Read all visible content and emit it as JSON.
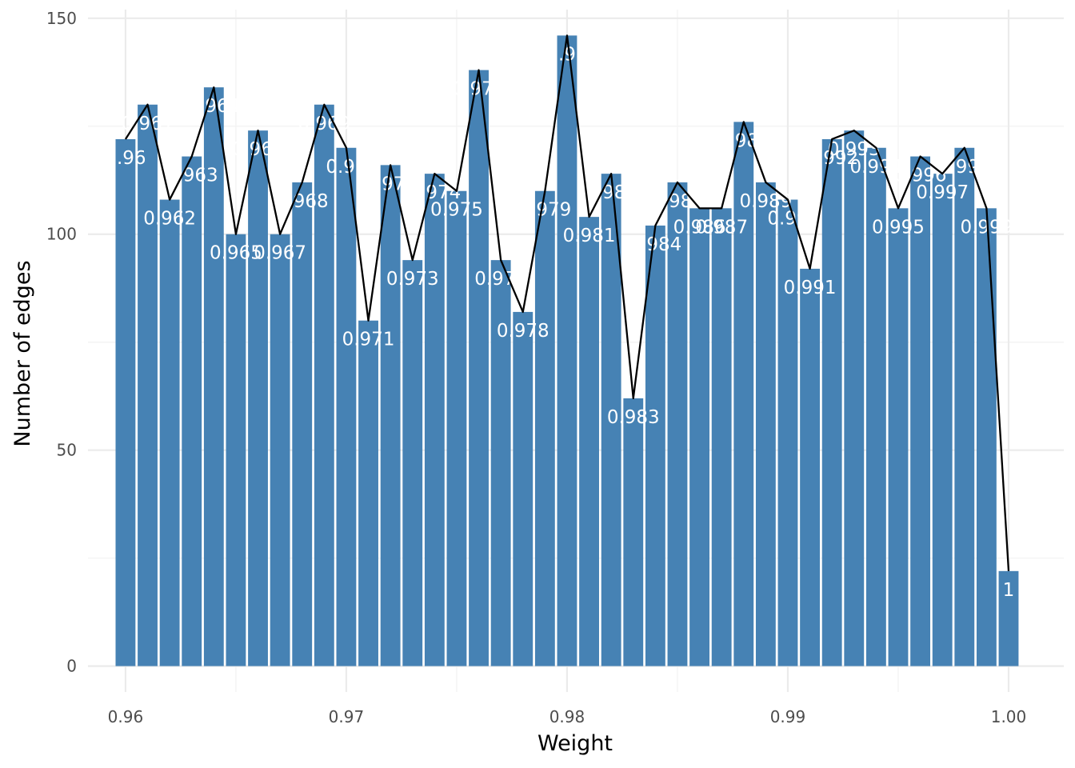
{
  "chart_data": {
    "type": "bar",
    "xlabel": "Weight",
    "ylabel": "Number of edges",
    "xlim": [
      0.9583,
      1.0025
    ],
    "ylim": [
      -6,
      152
    ],
    "x_ticks": [
      "0.96",
      "0.97",
      "0.98",
      "0.99",
      "1.00"
    ],
    "y_ticks": [
      "0",
      "50",
      "100",
      "150"
    ],
    "grid": true,
    "bar_color": "#4682B4",
    "line_color": "#000000",
    "x": [
      0.96,
      0.961,
      0.962,
      0.963,
      0.964,
      0.965,
      0.966,
      0.967,
      0.968,
      0.969,
      0.97,
      0.971,
      0.972,
      0.973,
      0.974,
      0.975,
      0.976,
      0.977,
      0.978,
      0.979,
      0.98,
      0.981,
      0.982,
      0.983,
      0.984,
      0.985,
      0.986,
      0.987,
      0.988,
      0.989,
      0.99,
      0.991,
      0.992,
      0.993,
      0.994,
      0.995,
      0.996,
      0.997,
      0.998,
      0.999,
      1.0
    ],
    "values": [
      122,
      130,
      108,
      118,
      134,
      100,
      124,
      100,
      112,
      130,
      120,
      80,
      116,
      94,
      114,
      110,
      138,
      94,
      82,
      110,
      146,
      104,
      114,
      62,
      102,
      112,
      106,
      106,
      126,
      112,
      108,
      92,
      122,
      124,
      120,
      106,
      118,
      114,
      120,
      106,
      22
    ],
    "labels": [
      "0.96",
      "0.961",
      "0.962",
      "0.963",
      "0.964",
      "0.965",
      "0.966",
      "0.967",
      "0.968",
      "0.969",
      "0.97",
      "0.971",
      "0.972",
      "0.973",
      "0.974",
      "0.975",
      "0.976",
      "0.977",
      "0.978",
      "0.979",
      "0.98",
      "0.981",
      "0.982",
      "0.983",
      "0.984",
      "0.985",
      "0.986",
      "0.987",
      "0.988",
      "0.989",
      "0.99",
      "0.991",
      "0.992",
      "0.993",
      "0.994",
      "0.995",
      "0.996",
      "0.997",
      "0.998",
      "0.999",
      "1"
    ]
  }
}
